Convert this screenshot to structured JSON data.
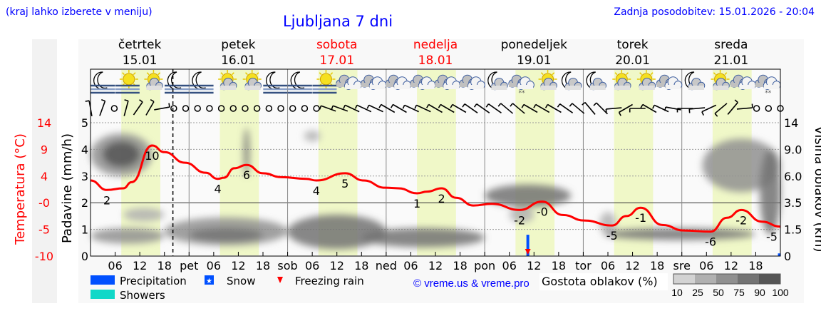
{
  "header": {
    "location_hint": "(kraj lahko izberete v meniju)",
    "title": "Ljubljana 7 dni",
    "updated": "Zadnja posodobitev: 15.01.2026 - 20:04"
  },
  "colors": {
    "title": "#0000ff",
    "weekend": "#ff0000",
    "temperature": "#ff0000",
    "daylight": "#f0f8c8",
    "precipitation": "#0050ff",
    "showers": "#10d8c8",
    "freezing_rain": "#ff0000",
    "cloud_scale": [
      "#d3d3d3",
      "#b0b0b0",
      "#909090",
      "#737373",
      "#555555"
    ]
  },
  "days": [
    {
      "name": "četrtek",
      "date": "15.01",
      "weekend": false
    },
    {
      "name": "petek",
      "date": "16.01",
      "weekend": false
    },
    {
      "name": "sobota",
      "date": "17.01",
      "weekend": true
    },
    {
      "name": "nedelja",
      "date": "18.01",
      "weekend": true
    },
    {
      "name": "ponedeljek",
      "date": "19.01",
      "weekend": false
    },
    {
      "name": "torek",
      "date": "20.01",
      "weekend": false
    },
    {
      "name": "sreda",
      "date": "21.01",
      "weekend": false
    }
  ],
  "chart_data": {
    "type": "line",
    "x_start": "15.01 00:00",
    "x_end": "22.01 00:00",
    "now": "15.01 20:04",
    "x_tick_labels": [
      "06",
      "12",
      "18",
      "pet",
      "06",
      "12",
      "18",
      "sob",
      "06",
      "12",
      "18",
      "ned",
      "06",
      "12",
      "18",
      "pon",
      "06",
      "12",
      "18",
      "tor",
      "06",
      "12",
      "18",
      "sre",
      "06",
      "12",
      "18"
    ],
    "daylight": {
      "from": "07:30",
      "to": "17:00"
    },
    "axes": {
      "temperature": {
        "label": "Temperatura (°C)",
        "ylim": [
          -10,
          14
        ],
        "ticks": [
          "14",
          "9",
          "4",
          "-0",
          "-5",
          "-10"
        ]
      },
      "precipitation": {
        "label": "Padavine (mm/h)",
        "ylim": [
          0,
          5
        ],
        "ticks": [
          "5",
          "4",
          "3",
          "2",
          "1",
          "0"
        ]
      },
      "cloud_height": {
        "label": "Višina oblakov (km)",
        "ticks": [
          "14",
          "9.0",
          "6.0",
          "3.5",
          "1.5",
          "0"
        ],
        "tick_values": [
          14,
          9,
          6,
          3.5,
          1.5,
          0
        ]
      }
    },
    "grid": true,
    "temperature": [
      [
        "15.01 00:00",
        3.6
      ],
      [
        "15.01 04:00",
        1.9
      ],
      [
        "15.01 08:00",
        2.2
      ],
      [
        "15.01 10:00",
        3.3
      ],
      [
        "15.01 15:00",
        9.9
      ],
      [
        "15.01 18:00",
        8.7
      ],
      [
        "15.01 23:00",
        6.8
      ],
      [
        "16.01 04:00",
        5.0
      ],
      [
        "16.01 07:00",
        3.9
      ],
      [
        "16.01 08:30",
        4.1
      ],
      [
        "16.01 11:00",
        5.8
      ],
      [
        "16.01 14:00",
        6.4
      ],
      [
        "16.01 18:00",
        4.9
      ],
      [
        "16.01 22:30",
        4.2
      ],
      [
        "17.01 04:30",
        3.9
      ],
      [
        "17.01 07:00",
        3.6
      ],
      [
        "17.01 14:00",
        4.9
      ],
      [
        "17.01 18:30",
        3.6
      ],
      [
        "17.01 23:45",
        2.3
      ],
      [
        "18.01 03:00",
        2.2
      ],
      [
        "18.01 07:30",
        1.3
      ],
      [
        "18.01 10:00",
        1.6
      ],
      [
        "18.01 13:30",
        2.2
      ],
      [
        "18.01 17:00",
        0.5
      ],
      [
        "18.01 21:15",
        -0.9
      ],
      [
        "19.01 01:45",
        -0.6
      ],
      [
        "19.01 08:30",
        -1.7
      ],
      [
        "19.01 14:00",
        -0.2
      ],
      [
        "19.01 19:00",
        -2.6
      ],
      [
        "20.01 00:15",
        -3.6
      ],
      [
        "20.01 07:00",
        -4.5
      ],
      [
        "20.01 10:30",
        -2.8
      ],
      [
        "20.01 14:00",
        -1.3
      ],
      [
        "20.01 19:15",
        -4.4
      ],
      [
        "21.01 00:30",
        -5.4
      ],
      [
        "21.01 07:00",
        -5.6
      ],
      [
        "21.01 11:00",
        -3.1
      ],
      [
        "21.01 14:30",
        -1.7
      ],
      [
        "21.01 19:30",
        -3.8
      ],
      [
        "22.01 00:00",
        -4.7
      ]
    ],
    "temperature_labels": [
      [
        "15.01 04:00",
        "2",
        1.9
      ],
      [
        "15.01 15:00",
        "10",
        9.9
      ],
      [
        "16.01 07:00",
        "4",
        3.9
      ],
      [
        "16.01 14:00",
        "6",
        6.4
      ],
      [
        "17.01 07:00",
        "4",
        3.6
      ],
      [
        "17.01 14:00",
        "5",
        4.9
      ],
      [
        "18.01 07:30",
        "1",
        1.3
      ],
      [
        "18.01 13:30",
        "2",
        2.2
      ],
      [
        "19.01 08:30",
        "-2",
        -1.7
      ],
      [
        "19.01 14:00",
        "-0",
        -0.2
      ],
      [
        "20.01 07:00",
        "-5",
        -4.5
      ],
      [
        "20.01 14:00",
        "-1",
        -1.3
      ],
      [
        "21.01 07:00",
        "-6",
        -5.6
      ],
      [
        "21.01 14:30",
        "-2",
        -1.7
      ],
      [
        "22.01 00:00",
        "-5",
        -4.7
      ]
    ],
    "precipitation": [
      {
        "time": "19.01 10:30",
        "mm_h": 0.8,
        "type": "Precipitation",
        "freezing_rain": true
      },
      {
        "time": "21.01 23:45",
        "mm_h": 0.1,
        "type": "Precipitation",
        "freezing_rain": false
      }
    ],
    "cloud_density": [
      {
        "from": "15.01 00:00",
        "to": "15.01 15:00",
        "alt_low": 6.0,
        "alt_high": 12.0,
        "density": 50
      },
      {
        "from": "15.01 03:00",
        "to": "15.01 12:00",
        "alt_low": 7.0,
        "alt_high": 10.5,
        "density": 90
      },
      {
        "from": "15.01 00:00",
        "to": "15.01 18:00",
        "alt_low": 0.7,
        "alt_high": 1.6,
        "density": 50
      },
      {
        "from": "15.01 08:00",
        "to": "15.01 18:00",
        "alt_low": 2.1,
        "alt_high": 3.1,
        "density": 25
      },
      {
        "from": "15.01 18:00",
        "to": "17.01 00:00",
        "alt_low": 0.6,
        "alt_high": 2.4,
        "density": 50
      },
      {
        "from": "16.01 00:00",
        "to": "16.01 18:00",
        "alt_low": 0.8,
        "alt_high": 1.6,
        "density": 75
      },
      {
        "from": "16.01 13:30",
        "to": "16.01 14:30",
        "alt_low": 6.0,
        "alt_high": 13.0,
        "density": 75
      },
      {
        "from": "17.01 04:00",
        "to": "17.01 08:00",
        "alt_low": 10.5,
        "alt_high": 12.5,
        "density": 25
      },
      {
        "from": "17.01 00:00",
        "to": "18.01 00:00",
        "alt_low": 0.4,
        "alt_high": 2.6,
        "density": 75
      },
      {
        "from": "17.01 18:00",
        "to": "19.01 00:00",
        "alt_low": 0.5,
        "alt_high": 1.6,
        "density": 75
      },
      {
        "from": "19.01 00:00",
        "to": "19.01 21:00",
        "alt_low": 3.2,
        "alt_high": 5.2,
        "density": 75
      },
      {
        "from": "19.01 06:00",
        "to": "19.01 12:00",
        "alt_low": 2.0,
        "alt_high": 3.2,
        "density": 25
      },
      {
        "from": "20.01 04:00",
        "to": "20.01 08:00",
        "alt_low": 1.2,
        "alt_high": 2.8,
        "density": 25
      },
      {
        "from": "20.01 05:00",
        "to": "21.01 18:00",
        "alt_low": 0.9,
        "alt_high": 1.6,
        "density": 75
      },
      {
        "from": "21.01 05:00",
        "to": "22.01 00:00",
        "alt_low": 4.5,
        "alt_high": 11.0,
        "density": 50
      },
      {
        "from": "21.01 19:00",
        "to": "22.01 00:00",
        "alt_low": 1.2,
        "alt_high": 9.0,
        "density": 75
      }
    ],
    "weather_icons": [
      "moon-fog",
      "sun-fog",
      "sun-cloud",
      "moon-fog",
      "moon-fog",
      "sun-cloud",
      "sun-cloud",
      "moon-fog",
      "moon-fog",
      "sun-fog",
      "cloudy",
      "cloudy",
      "cloudy",
      "cloudy",
      "cloudy",
      "cloudy",
      "moon-cloud",
      "cloud-snow",
      "sun-cloud",
      "moon-cloud",
      "moon-cloud",
      "sun-cloud",
      "sun-cloud",
      "cloudy",
      "moon-cloud",
      "sun-cloud",
      "cloudy",
      "cloud-snow"
    ],
    "wind": [
      "350",
      "20",
      "calm",
      "15",
      "35",
      "30",
      "80",
      "calm",
      "calm",
      "calm",
      "calm",
      "calm",
      "calm",
      "calm",
      "calm",
      "calm",
      "calm",
      "calm",
      "calm",
      "calm",
      "290",
      "290",
      "295",
      "295",
      "295",
      "300",
      "300",
      "295",
      "295",
      "300",
      "300",
      "300",
      "305",
      "305",
      "305",
      "310",
      "310",
      "300",
      "300",
      "300",
      "305",
      "310",
      "320",
      "315",
      "265",
      "240",
      "270",
      "300",
      "295",
      "280",
      "270",
      "265",
      "245",
      "230",
      "40",
      "85",
      "calm",
      "calm",
      "calm"
    ]
  },
  "legend": {
    "precipitation": "Precipitation",
    "snow": "Snow",
    "freezing_rain": "Freezing rain",
    "showers": "Showers",
    "copyright": "© vreme.us & vreme.pro",
    "cloud_density_title": "Gostota oblakov (%)",
    "cloud_density_ticks": [
      "10",
      "25",
      "50",
      "75",
      "90",
      "100"
    ]
  }
}
